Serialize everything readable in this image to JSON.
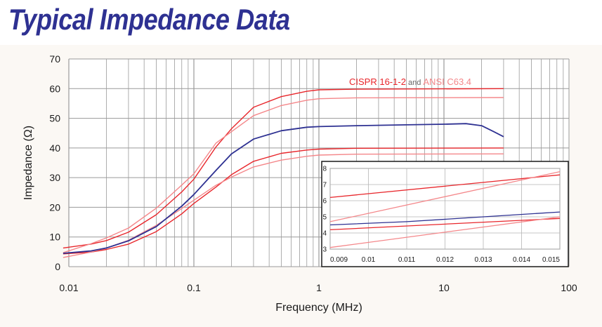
{
  "title": "Typical Impedance Data",
  "colors": {
    "title": "#2e3192",
    "measured": "#2e3192",
    "cispr": "#e8262b",
    "ansi": "#f4878a",
    "grid": "#9a9a9a"
  },
  "chart_data": [
    {
      "type": "line",
      "xlabel": "Frequency (MHz)",
      "ylabel": "Impedance (Ω)",
      "xscale": "log",
      "xlim": [
        0.01,
        100
      ],
      "ylim": [
        0,
        70
      ],
      "xticks": [
        "0.01",
        "0.1",
        "1",
        "10",
        "100"
      ],
      "yticks": [
        "0",
        "10",
        "20",
        "30",
        "40",
        "50",
        "60",
        "70"
      ],
      "grid": true,
      "legend": {
        "placement": "top-right",
        "cispr_label": "CISPR 16-1-2",
        "joiner": "and",
        "ansi_label": "ANSI C63.4"
      },
      "series": [
        {
          "role": "cispr",
          "x": [
            0.009,
            0.015,
            0.02,
            0.03,
            0.05,
            0.08,
            0.1,
            0.15,
            0.2,
            0.3,
            0.5,
            0.8,
            1,
            2,
            30
          ],
          "y": [
            6.3,
            7.6,
            8.8,
            11.6,
            17.5,
            25.2,
            29.5,
            40.3,
            46.5,
            53.7,
            57.3,
            59.1,
            59.6,
            59.8,
            60
          ]
        },
        {
          "role": "cispr",
          "x": [
            0.009,
            0.015,
            0.02,
            0.03,
            0.05,
            0.08,
            0.1,
            0.15,
            0.2,
            0.3,
            0.5,
            0.8,
            1,
            2,
            30
          ],
          "y": [
            4.3,
            4.9,
            5.8,
            7.6,
            11.8,
            17.8,
            21.3,
            26.8,
            31,
            35.5,
            38.2,
            39.3,
            39.6,
            39.9,
            40
          ]
        },
        {
          "role": "ansi",
          "x": [
            0.009,
            0.015,
            0.02,
            0.03,
            0.05,
            0.08,
            0.1,
            0.15,
            0.2,
            0.3,
            0.5,
            0.8,
            1,
            2,
            30
          ],
          "y": [
            4.7,
            7.7,
            9.7,
            13,
            19.7,
            27.5,
            31.3,
            41.6,
            45.5,
            50.9,
            54.3,
            56.1,
            56.6,
            56.9,
            57
          ]
        },
        {
          "role": "ansi",
          "x": [
            0.009,
            0.015,
            0.02,
            0.03,
            0.05,
            0.08,
            0.1,
            0.15,
            0.2,
            0.3,
            0.5,
            0.8,
            1,
            2,
            30
          ],
          "y": [
            3.1,
            4.9,
            6.3,
            8.9,
            13.9,
            19.6,
            22.4,
            27.4,
            30.2,
            33.6,
            35.9,
            37.2,
            37.6,
            37.9,
            38
          ]
        },
        {
          "role": "measured",
          "x": [
            0.009,
            0.015,
            0.02,
            0.03,
            0.05,
            0.08,
            0.1,
            0.15,
            0.2,
            0.3,
            0.5,
            0.8,
            1,
            2,
            5,
            10,
            15,
            20,
            25,
            30
          ],
          "y": [
            4.5,
            5.3,
            6.3,
            8.7,
            13.5,
            20.4,
            24.3,
            32.4,
            38,
            43,
            45.8,
            47,
            47.2,
            47.5,
            47.8,
            48,
            48.2,
            47.5,
            45.5,
            43.8
          ]
        }
      ]
    },
    {
      "type": "line",
      "xscale": "linear",
      "xlim": [
        0.009,
        0.015
      ],
      "ylim": [
        3,
        8
      ],
      "xticks": [
        "0.009",
        "0.01",
        "0.011",
        "0.012",
        "0.013",
        "0.014",
        "0.015"
      ],
      "yticks": [
        "3",
        "4",
        "5",
        "6",
        "7",
        "8"
      ],
      "grid": true,
      "series": [
        {
          "role": "cispr",
          "x": [
            0.009,
            0.015
          ],
          "y": [
            6.2,
            7.6
          ]
        },
        {
          "role": "cispr",
          "x": [
            0.009,
            0.015
          ],
          "y": [
            4.2,
            4.9
          ]
        },
        {
          "role": "ansi",
          "x": [
            0.009,
            0.015
          ],
          "y": [
            4.7,
            7.8
          ]
        },
        {
          "role": "ansi",
          "x": [
            0.009,
            0.015
          ],
          "y": [
            3.1,
            5
          ]
        },
        {
          "role": "measured",
          "x": [
            0.009,
            0.011,
            0.013,
            0.015
          ],
          "y": [
            4.5,
            4.7,
            5,
            5.3
          ]
        }
      ]
    }
  ]
}
